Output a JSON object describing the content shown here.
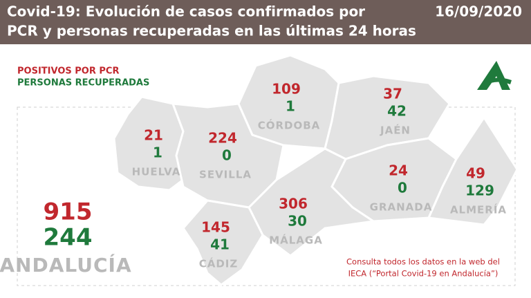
{
  "header": {
    "title_line1": "Covid-19: Evolución de casos confirmados por",
    "title_line2": "PCR y personas recuperadas en las últimas 24 horas",
    "date": "16/09/2020"
  },
  "legend": {
    "pcr": "POSITIVOS POR PCR",
    "recovered": "PERSONAS RECUPERADAS"
  },
  "provinces": [
    {
      "name": "HUELVA",
      "pcr": 21,
      "recovered": 1
    },
    {
      "name": "SEVILLA",
      "pcr": 224,
      "recovered": 0
    },
    {
      "name": "CÓRDOBA",
      "pcr": 109,
      "recovered": 1
    },
    {
      "name": "JAÉN",
      "pcr": 37,
      "recovered": 42
    },
    {
      "name": "GRANADA",
      "pcr": 24,
      "recovered": 0
    },
    {
      "name": "ALMERÍA",
      "pcr": 49,
      "recovered": 129
    },
    {
      "name": "MÁLAGA",
      "pcr": 306,
      "recovered": 30
    },
    {
      "name": "CÁDIZ",
      "pcr": 145,
      "recovered": 41
    }
  ],
  "total": {
    "name": "ANDALUCÍA",
    "pcr": 915,
    "recovered": 244
  },
  "note": {
    "line1": "Consulta todos los datos en la web del",
    "line2": "IECA (“Portal Covid-19 en Andalucía”)"
  }
}
